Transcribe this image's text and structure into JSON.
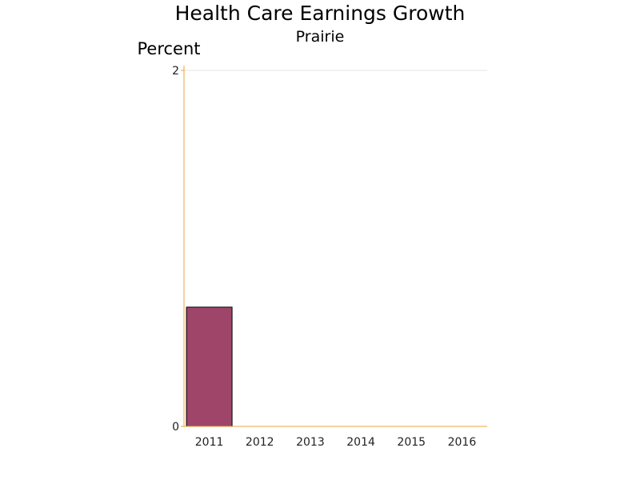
{
  "chart_data": {
    "type": "bar",
    "title": "Health Care Earnings Growth",
    "subtitle": "Prairie",
    "ylabel": "Percent",
    "xlabel": "",
    "categories": [
      "2011",
      "2012",
      "2013",
      "2014",
      "2015",
      "2016"
    ],
    "values": [
      0.67,
      null,
      null,
      null,
      null,
      null
    ],
    "ylim": [
      0,
      2
    ],
    "yticks": [
      "0",
      "2"
    ],
    "grid": true,
    "legend": "none",
    "colors": {
      "bar": "#a0456a",
      "bar_outline": "#000000",
      "axis": "#e8a33d",
      "grid": "#e6e6e6"
    }
  }
}
